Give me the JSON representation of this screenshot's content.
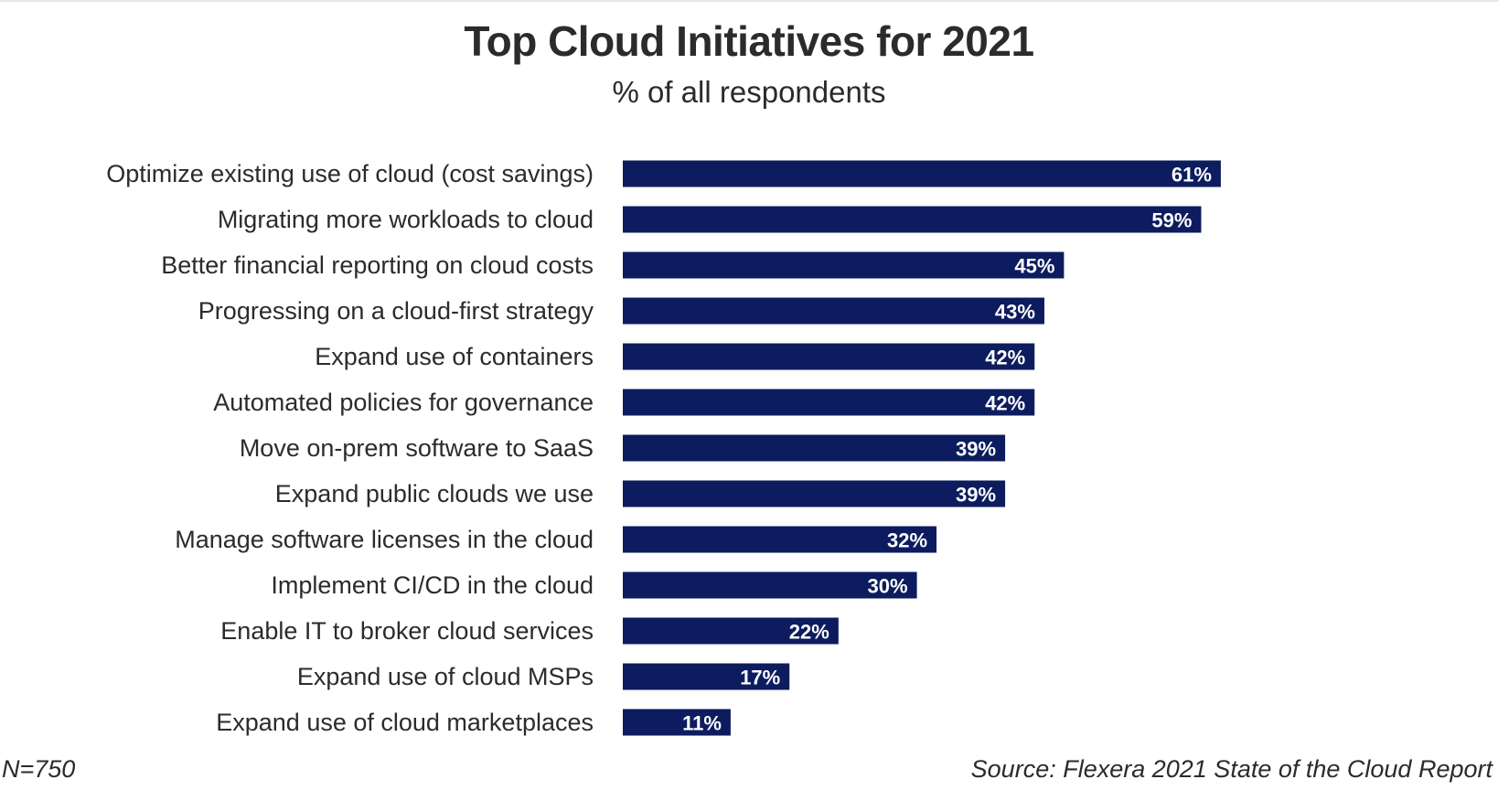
{
  "chart_data": {
    "type": "bar",
    "orientation": "horizontal",
    "title": "Top Cloud Initiatives for 2021",
    "subtitle": "% of all respondents",
    "categories": [
      "Optimize existing use of cloud (cost savings)",
      "Migrating more workloads to cloud",
      "Better financial reporting on cloud costs",
      "Progressing on a cloud-first strategy",
      "Expand use of containers",
      "Automated policies for governance",
      "Move on-prem software to SaaS",
      "Expand public clouds we use",
      "Manage software licenses in the cloud",
      "Implement CI/CD in the cloud",
      "Enable IT to broker cloud services",
      "Expand use of cloud MSPs",
      "Expand use of cloud marketplaces"
    ],
    "values": [
      61,
      59,
      45,
      43,
      42,
      42,
      39,
      39,
      32,
      30,
      22,
      17,
      11
    ],
    "value_labels": [
      "61%",
      "59%",
      "45%",
      "43%",
      "42%",
      "42%",
      "39%",
      "39%",
      "32%",
      "30%",
      "22%",
      "17%",
      "11%"
    ],
    "unit": "%",
    "bar_color": "#0c1c5e",
    "value_label_color": "#ffffff",
    "grid": false,
    "legend": "none"
  },
  "footnotes": {
    "sample_size": "N=750",
    "source": "Source: Flexera 2021 State of the Cloud Report"
  }
}
